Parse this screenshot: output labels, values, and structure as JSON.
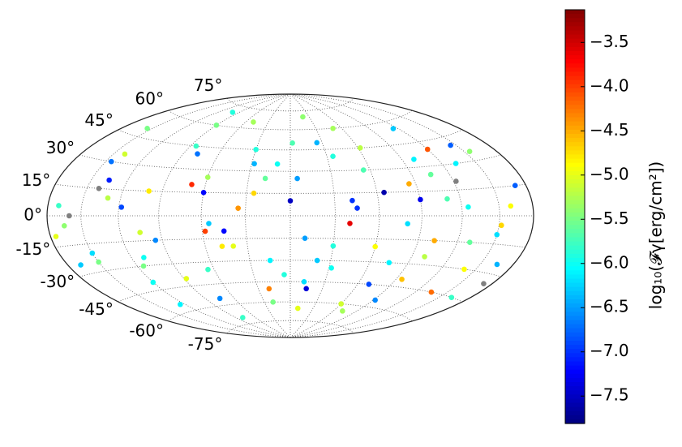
{
  "chart_data": {
    "type": "scatter",
    "projection": "hammer",
    "colorbar_label": "log₁₀(𝓕γ[erg/cm²])",
    "colormap": "jet",
    "null_color": "#808080",
    "xlim": [
      -180,
      180
    ],
    "ylim": [
      -90,
      90
    ],
    "xgrid": [
      -150,
      -120,
      -90,
      -60,
      -30,
      0,
      30,
      60,
      90,
      120,
      150
    ],
    "yticks": [
      {
        "value": -75,
        "label": "-75°"
      },
      {
        "value": -60,
        "label": "-60°"
      },
      {
        "value": -45,
        "label": "-45°"
      },
      {
        "value": -30,
        "label": "-30°"
      },
      {
        "value": -15,
        "label": "-15°"
      },
      {
        "value": 0,
        "label": "0°"
      },
      {
        "value": 15,
        "label": "15°"
      },
      {
        "value": 30,
        "label": "30°"
      },
      {
        "value": 45,
        "label": "45°"
      },
      {
        "value": 60,
        "label": "60°"
      },
      {
        "value": 75,
        "label": "75°"
      }
    ],
    "clim": [
      -7.81,
      -3.13
    ],
    "cticks": [
      {
        "value": -7.5,
        "label": "−7.5"
      },
      {
        "value": -7.0,
        "label": "−7.0"
      },
      {
        "value": -6.5,
        "label": "−6.5"
      },
      {
        "value": -6.0,
        "label": "−6.0"
      },
      {
        "value": -5.5,
        "label": "−5.5"
      },
      {
        "value": -5.0,
        "label": "−5.0"
      },
      {
        "value": -4.5,
        "label": "−4.5"
      },
      {
        "value": -4.0,
        "label": "−4.0"
      },
      {
        "value": -3.5,
        "label": "−3.5"
      }
    ],
    "grid": true,
    "x": [
      -170,
      -150,
      -140,
      -120,
      -100,
      -90,
      -75,
      -60,
      -45,
      -30,
      -15,
      0,
      10,
      25,
      40,
      55,
      70,
      85,
      100,
      115,
      130,
      145,
      160,
      172,
      -165,
      -135,
      -110,
      -80,
      -50,
      -20,
      5,
      30,
      60,
      90,
      120,
      150,
      -175,
      -145,
      -115,
      -85,
      -55,
      -25,
      -5,
      20,
      45,
      75,
      105,
      135,
      165,
      -160,
      -130,
      -95,
      -65,
      -35,
      -10,
      15,
      50,
      80,
      110,
      140,
      170,
      -155,
      -125,
      -70,
      -40,
      10,
      35,
      65,
      95,
      125,
      155,
      -168,
      -140,
      -105,
      -78,
      -48,
      -18,
      12,
      42,
      72,
      102,
      132,
      162,
      -150,
      -118,
      -88,
      -58,
      -28,
      2,
      32,
      62,
      92,
      122,
      152,
      -100,
      -60,
      -20,
      20,
      60,
      100
    ],
    "y": [
      5,
      -20,
      35,
      -40,
      15,
      60,
      -55,
      25,
      -10,
      45,
      -30,
      10,
      -65,
      50,
      -5,
      30,
      -45,
      20,
      -25,
      55,
      -15,
      40,
      5,
      -35,
      -5,
      20,
      -25,
      -70,
      65,
      -50,
      25,
      -20,
      -60,
      10,
      40,
      -10,
      -10,
      30,
      -30,
      45,
      -5,
      15,
      -40,
      70,
      5,
      -30,
      25,
      -45,
      -25,
      0,
      10,
      -15,
      -35,
      5,
      35,
      -50,
      60,
      -5,
      10,
      -30,
      15,
      50,
      -55,
      20,
      -20,
      -15,
      40,
      15,
      -40,
      5,
      35,
      -25,
      15,
      -10,
      40,
      -20,
      25,
      -45,
      10,
      -65,
      -15,
      30,
      -45,
      -25,
      5,
      -40,
      -10,
      35,
      50,
      -35,
      45,
      -55,
      20,
      -5,
      70,
      15,
      -60,
      -30,
      -20,
      35
    ],
    "values": [
      -5.8,
      -6.2,
      -5.1,
      -6.0,
      -4.8,
      -5.5,
      -6.6,
      -5.3,
      -7.2,
      -5.9,
      -6.1,
      -7.5,
      -5.0,
      -6.4,
      -3.6,
      -5.7,
      -6.9,
      -4.5,
      -5.2,
      -6.3,
      -5.6,
      -6.8,
      -4.9,
      null,
      -5.4,
      -7.1,
      -6.0,
      -5.8,
      -5.3,
      -4.3,
      -6.5,
      -5.9,
      -5.1,
      -7.3,
      -4.1,
      -6.2,
      -5.0,
      -6.7,
      -5.5,
      -5.8,
      -6.3,
      -4.7,
      -5.9,
      -5.4,
      -7.0,
      -6.1,
      -5.6,
      -4.2,
      -6.4,
      null,
      -5.2,
      -6.6,
      -5.8,
      -4.4,
      -6.0,
      -7.4,
      -5.3,
      -6.2,
      -5.7,
      -4.9,
      -6.8,
      -5.5,
      -6.1,
      -3.9,
      -5.0,
      -6.5,
      -5.9,
      -7.6,
      -4.6,
      -6.0,
      -5.4,
      -6.3,
      null,
      -5.1,
      -6.7,
      -4.8,
      -5.6,
      -6.2,
      -7.0,
      -5.3,
      -4.5,
      -6.1,
      -5.8,
      -5.5,
      -6.9,
      -5.0,
      -4.0,
      -6.4,
      -5.7,
      -6.0,
      -5.2,
      -6.6,
      null,
      -4.7,
      -5.9,
      -7.2,
      -5.5,
      -6.3,
      -4.9,
      -6.1
    ]
  }
}
